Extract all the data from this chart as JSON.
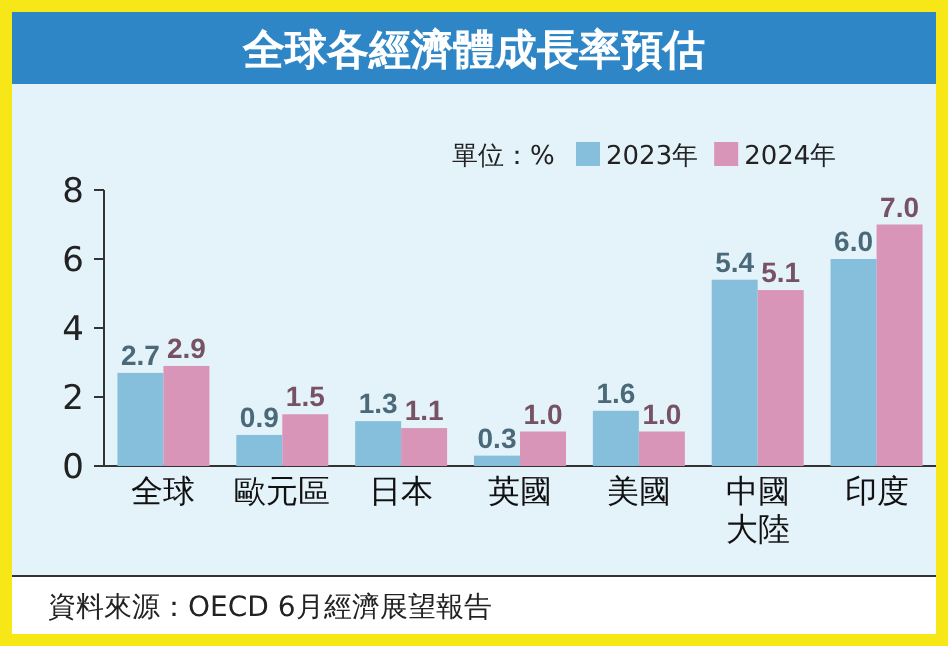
{
  "chart_data": {
    "type": "bar",
    "title": "全球各經濟體成長率預估",
    "categories": [
      "全球",
      "歐元區",
      "日本",
      "英國",
      "美國",
      "中國大陸",
      "印度"
    ],
    "series": [
      {
        "name": "2023年",
        "color": "#86bfdc",
        "values": [
          2.7,
          0.9,
          1.3,
          0.3,
          1.6,
          5.4,
          6.0
        ],
        "value_labels": [
          "2.7",
          "0.9",
          "1.3",
          "0.3",
          "1.6",
          "5.4",
          "6.0"
        ]
      },
      {
        "name": "2024年",
        "color": "#d995b8",
        "values": [
          2.9,
          1.5,
          1.1,
          1.0,
          1.0,
          5.1,
          7.0
        ],
        "value_labels": [
          "2.9",
          "1.5",
          "1.1",
          "1.0",
          "1.0",
          "5.1",
          "7.0"
        ]
      }
    ],
    "ylim": [
      0,
      8
    ],
    "yticks": [
      0,
      2,
      4,
      6,
      8
    ],
    "legend": "top right",
    "grid": false,
    "annotations": [
      "單位：%",
      "資料來源：OECD 6月經濟展望報告"
    ]
  }
}
